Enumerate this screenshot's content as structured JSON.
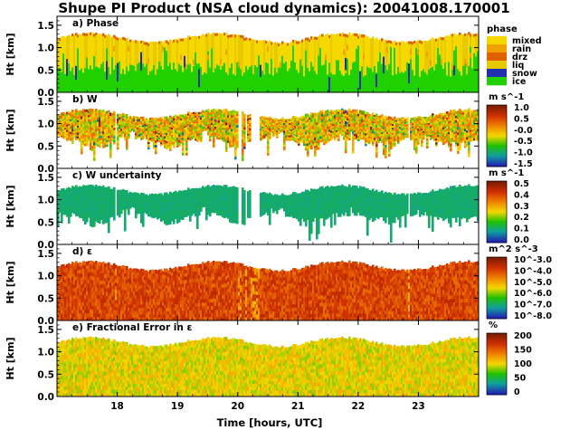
{
  "chart_data": {
    "type": "heatmap",
    "title": "Shupe PI Product (NSA cloud dynamics): 20041008.170001",
    "xlabel": "Time [hours, UTC]",
    "xlim": [
      17.0,
      24.0
    ],
    "x_ticks": [
      "18",
      "19",
      "20",
      "21",
      "22",
      "23"
    ],
    "x_tick_values": [
      18,
      19,
      20,
      21,
      22,
      23
    ],
    "panels": [
      {
        "title": "a) Phase",
        "ylabel": "Ht [km]",
        "ylim": [
          0.0,
          1.7
        ],
        "y_ticks": [
          "1.5",
          "1.0",
          "0.5",
          "0.0"
        ],
        "y_tick_values": [
          1.5,
          1.0,
          0.5,
          0.0
        ],
        "colorbar": {
          "kind": "categorical",
          "title": "phase",
          "categories": [
            {
              "label": "mixed",
              "color": "#f5d800"
            },
            {
              "label": "rain",
              "color": "#f0a000"
            },
            {
              "label": "drz",
              "color": "#e06000"
            },
            {
              "label": "liq",
              "color": "#e8c800"
            },
            {
              "label": "snow",
              "color": "#2030b0"
            },
            {
              "label": "ice",
              "color": "#20d000"
            }
          ]
        },
        "layers": [
          {
            "name": "ice",
            "from": 0.0,
            "to": 0.55
          },
          {
            "name": "mixed",
            "from": 0.55,
            "to": 1.25
          }
        ],
        "cloud_top_km": 1.3
      },
      {
        "title": "b) W",
        "ylabel": "Ht [km]",
        "ylim": [
          0.0,
          1.7
        ],
        "y_ticks": [
          "1.5",
          "1.0",
          "0.5",
          "0.0"
        ],
        "y_tick_values": [
          1.5,
          1.0,
          0.5,
          0.0
        ],
        "colorbar": {
          "kind": "continuous",
          "unit": "m s^-1",
          "labels": [
            "1.0",
            "0.5",
            "-0.0",
            "-0.5",
            "-1.0",
            "-1.5"
          ],
          "colors": [
            "#7a1c00",
            "#d03000",
            "#f08000",
            "#f5d800",
            "#20c000",
            "#10a0a0",
            "#2020b0"
          ]
        },
        "cloud_base_km": 0.6,
        "cloud_top_km": 1.3
      },
      {
        "title": "c) W uncertainty",
        "ylabel": "Ht [km]",
        "ylim": [
          0.0,
          1.7
        ],
        "y_ticks": [
          "1.5",
          "1.0",
          "0.5",
          "0.0"
        ],
        "y_tick_values": [
          1.5,
          1.0,
          0.5,
          0.0
        ],
        "colorbar": {
          "kind": "continuous",
          "unit": "m s^-1",
          "labels": [
            "0.5",
            "0.4",
            "0.3",
            "0.2",
            "0.1",
            "0.0"
          ],
          "colors": [
            "#7a1c00",
            "#d03000",
            "#f08000",
            "#f5d800",
            "#20c000",
            "#10a0a0",
            "#2020b0"
          ]
        },
        "typical_value": 0.1,
        "cloud_base_km": 0.6,
        "cloud_top_km": 1.3
      },
      {
        "title": "d) ε",
        "ylabel": "Ht [km]",
        "ylim": [
          0.0,
          1.7
        ],
        "y_ticks": [
          "1.5",
          "1.0",
          "0.5",
          "0.0"
        ],
        "y_tick_values": [
          1.5,
          1.0,
          0.5,
          0.0
        ],
        "colorbar": {
          "kind": "continuous",
          "unit": "m^2 s^-3",
          "labels": [
            "10^-3.0",
            "10^-4.0",
            "10^-5.0",
            "10^-6.0",
            "10^-7.0",
            "10^-8.0"
          ],
          "colors": [
            "#7a1c00",
            "#d03000",
            "#f08000",
            "#f5d800",
            "#20c000",
            "#10a0a0",
            "#2020b0"
          ]
        },
        "cloud_base_km": 0.0,
        "cloud_top_km": 1.3
      },
      {
        "title": "e) Fractional Error in ε",
        "ylabel": "Ht [km]",
        "ylim": [
          0.0,
          1.7
        ],
        "y_ticks": [
          "1.5",
          "1.0",
          "0.5",
          "0.0"
        ],
        "y_tick_values": [
          1.5,
          1.0,
          0.5,
          0.0
        ],
        "colorbar": {
          "kind": "continuous",
          "unit": "%",
          "labels": [
            "200",
            "150",
            "100",
            "50",
            "0"
          ],
          "colors": [
            "#7a1c00",
            "#d03000",
            "#f08000",
            "#f5d800",
            "#20c000",
            "#10a0a0",
            "#2020b0"
          ]
        },
        "typical_value": 50,
        "cloud_base_km": 0.0,
        "cloud_top_km": 1.3
      }
    ]
  }
}
